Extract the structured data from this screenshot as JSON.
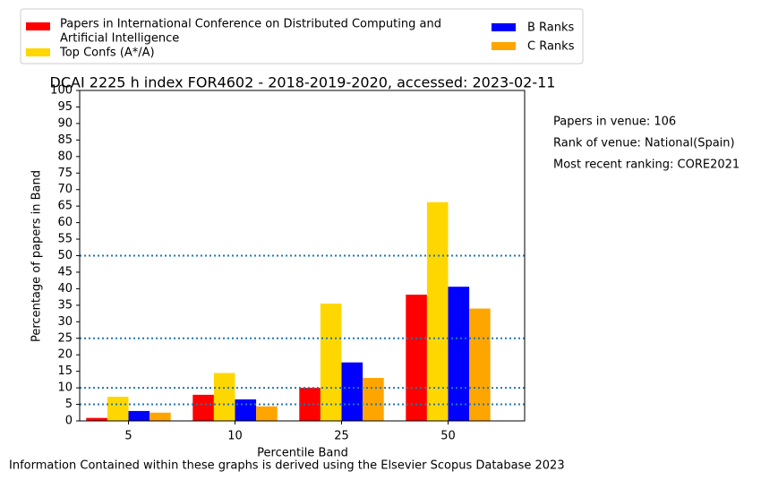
{
  "chart_data": {
    "type": "bar",
    "title": "DCAI 2225 h index FOR4602 - 2018-2019-2020, accessed: 2023-02-11",
    "xlabel": "Percentile Band",
    "ylabel": "Percentage of papers in Band",
    "categories": [
      "5",
      "10",
      "25",
      "50"
    ],
    "ylim": [
      0,
      100
    ],
    "yticks": [
      "0",
      "5",
      "10",
      "15",
      "20",
      "25",
      "30",
      "35",
      "40",
      "45",
      "50",
      "55",
      "60",
      "65",
      "70",
      "75",
      "80",
      "85",
      "90",
      "95",
      "100"
    ],
    "series": [
      {
        "name": "Papers in International Conference on Distributed Computing and Artificial Intelligence",
        "color": "#ff0000",
        "values": [
          0.9,
          7.9,
          10.0,
          38.2
        ]
      },
      {
        "name": "Top Confs (A*/A)",
        "color": "#ffd700",
        "values": [
          7.3,
          14.5,
          35.5,
          66.2
        ]
      },
      {
        "name": "B Ranks",
        "color": "#0000ff",
        "values": [
          3.0,
          6.5,
          17.7,
          40.6
        ]
      },
      {
        "name": "C Ranks",
        "color": "#ffa500",
        "values": [
          2.5,
          4.4,
          13.0,
          34.0
        ]
      }
    ],
    "reference_lines": [
      5,
      10,
      25,
      50
    ],
    "reference_line_color": "#1f77b4",
    "legend_placement": "top-left, above plot"
  },
  "legend": {
    "items": [
      {
        "label_lines": [
          "Papers in International Conference on Distributed Computing and",
          "Artificial Intelligence"
        ],
        "color": "#ff0000"
      },
      {
        "label_lines": [
          "Top Confs (A*/A)"
        ],
        "color": "#ffd700"
      },
      {
        "label_lines": [
          "B Ranks"
        ],
        "color": "#0000ff"
      },
      {
        "label_lines": [
          "C Ranks"
        ],
        "color": "#ffa500"
      }
    ]
  },
  "side_info": {
    "papers_in_venue": "Papers in venue: 106",
    "rank_of_venue": "Rank of venue: National(Spain)",
    "most_recent_ranking": "Most recent ranking: CORE2021"
  },
  "footer": {
    "note": "Information Contained within these graphs is derived using the Elsevier Scopus Database 2023"
  }
}
